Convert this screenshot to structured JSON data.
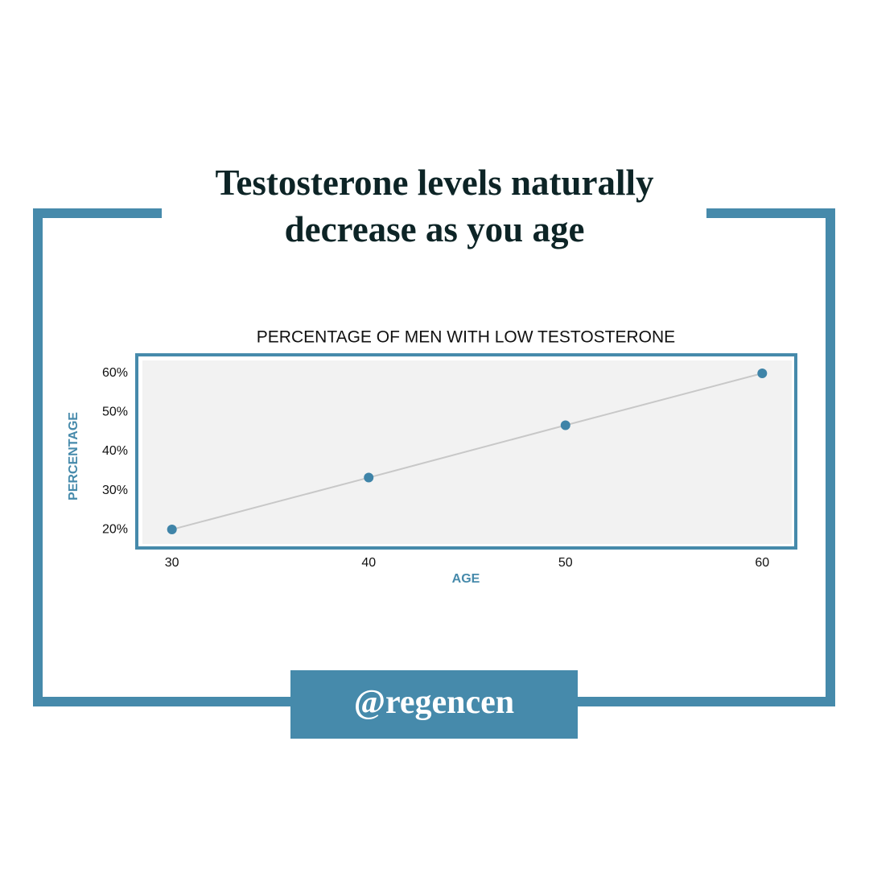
{
  "header": {
    "title": "Testosterone levels naturally decrease as you age"
  },
  "chart_data": {
    "type": "line",
    "title": "PERCENTAGE OF MEN WITH LOW TESTOSTERONE",
    "x_label": "AGE",
    "y_label": "PERCENTAGE",
    "x": [
      30,
      40,
      50,
      60
    ],
    "series": [
      {
        "name": "Low testosterone",
        "color": "#3f84a8",
        "values": [
          20,
          33.3,
          46.7,
          60
        ]
      }
    ],
    "line_color": "#c8c8c8",
    "xlim": [
      28.5,
      61.5
    ],
    "xticks": [
      30,
      40,
      50,
      60
    ],
    "ylim": [
      16.3,
      63.3
    ],
    "yticks": [
      {
        "value": 20,
        "label": "20%"
      },
      {
        "value": 30,
        "label": "30%"
      },
      {
        "value": 40,
        "label": "40%"
      },
      {
        "value": 50,
        "label": "50%"
      },
      {
        "value": 60,
        "label": "60%"
      }
    ]
  },
  "footer": {
    "handle": "@regencen"
  }
}
